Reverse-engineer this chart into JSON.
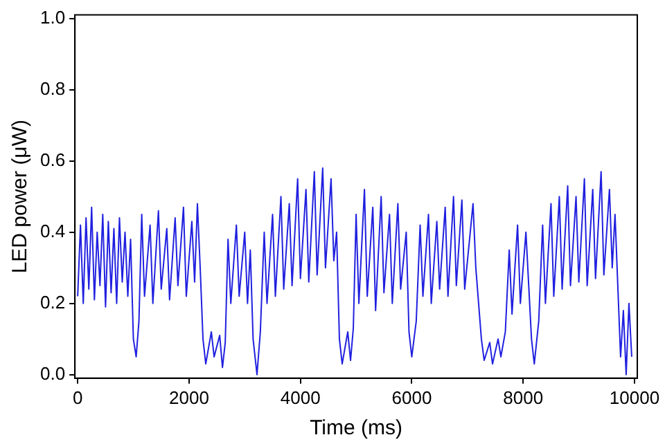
{
  "chart_data": {
    "type": "line",
    "xlabel": "Time (ms)",
    "ylabel": "LED power (μW)",
    "x": [
      0,
      50,
      100,
      150,
      200,
      250,
      300,
      350,
      400,
      450,
      500,
      550,
      600,
      650,
      700,
      750,
      800,
      850,
      900,
      950,
      1000,
      1050,
      1100,
      1150,
      1200,
      1300,
      1350,
      1450,
      1500,
      1600,
      1650,
      1750,
      1800,
      1900,
      1950,
      2050,
      2100,
      2150,
      2200,
      2250,
      2300,
      2400,
      2450,
      2550,
      2600,
      2650,
      2700,
      2750,
      2850,
      2900,
      3000,
      3050,
      3100,
      3150,
      3220,
      3280,
      3350,
      3400,
      3500,
      3550,
      3650,
      3700,
      3800,
      3850,
      3950,
      4000,
      4100,
      4150,
      4250,
      4300,
      4400,
      4450,
      4550,
      4600,
      4650,
      4700,
      4750,
      4850,
      4900,
      4950,
      5000,
      5050,
      5150,
      5200,
      5300,
      5350,
      5450,
      5500,
      5600,
      5650,
      5750,
      5800,
      5900,
      5950,
      6000,
      6080,
      6150,
      6200,
      6300,
      6350,
      6450,
      6500,
      6600,
      6650,
      6750,
      6800,
      6900,
      6950,
      7100,
      7150,
      7250,
      7300,
      7400,
      7450,
      7550,
      7600,
      7680,
      7750,
      7800,
      7900,
      7950,
      8050,
      8100,
      8150,
      8200,
      8280,
      8350,
      8400,
      8500,
      8550,
      8650,
      8700,
      8800,
      8850,
      8950,
      9000,
      9100,
      9150,
      9250,
      9300,
      9400,
      9450,
      9550,
      9600,
      9650,
      9750,
      9800,
      9850,
      9900,
      9950
    ],
    "series": [
      {
        "color": "#2020e0",
        "values": [
          0.22,
          0.42,
          0.2,
          0.44,
          0.24,
          0.47,
          0.21,
          0.4,
          0.25,
          0.45,
          0.19,
          0.43,
          0.23,
          0.41,
          0.2,
          0.44,
          0.26,
          0.4,
          0.22,
          0.38,
          0.1,
          0.05,
          0.15,
          0.45,
          0.22,
          0.42,
          0.2,
          0.46,
          0.24,
          0.41,
          0.21,
          0.44,
          0.25,
          0.47,
          0.22,
          0.43,
          0.26,
          0.48,
          0.3,
          0.1,
          0.03,
          0.12,
          0.05,
          0.11,
          0.02,
          0.09,
          0.38,
          0.2,
          0.42,
          0.22,
          0.4,
          0.2,
          0.35,
          0.1,
          0.0,
          0.12,
          0.4,
          0.2,
          0.45,
          0.22,
          0.5,
          0.24,
          0.48,
          0.25,
          0.55,
          0.27,
          0.52,
          0.26,
          0.57,
          0.28,
          0.58,
          0.3,
          0.55,
          0.32,
          0.4,
          0.1,
          0.03,
          0.12,
          0.04,
          0.13,
          0.45,
          0.2,
          0.52,
          0.22,
          0.47,
          0.18,
          0.5,
          0.23,
          0.45,
          0.2,
          0.48,
          0.24,
          0.4,
          0.12,
          0.05,
          0.15,
          0.42,
          0.22,
          0.45,
          0.2,
          0.43,
          0.24,
          0.47,
          0.22,
          0.5,
          0.25,
          0.49,
          0.24,
          0.48,
          0.3,
          0.1,
          0.04,
          0.09,
          0.03,
          0.1,
          0.05,
          0.12,
          0.35,
          0.17,
          0.42,
          0.2,
          0.4,
          0.25,
          0.1,
          0.03,
          0.15,
          0.42,
          0.2,
          0.48,
          0.22,
          0.5,
          0.24,
          0.53,
          0.25,
          0.5,
          0.26,
          0.55,
          0.25,
          0.52,
          0.27,
          0.57,
          0.28,
          0.52,
          0.3,
          0.45,
          0.05,
          0.18,
          0.0,
          0.2,
          0.05
        ]
      }
    ],
    "xlim": [
      -50,
      10050
    ],
    "xticks": [
      0,
      2000,
      4000,
      6000,
      8000,
      10000
    ],
    "ylim": [
      -0.01,
      1.01
    ],
    "yticks": [
      {
        "value": 0,
        "label": "0.0"
      },
      {
        "value": 0.2,
        "label": "0.2"
      },
      {
        "value": 0.4,
        "label": "0.4"
      },
      {
        "value": 0.6,
        "label": "0.6"
      },
      {
        "value": 0.8,
        "label": "0.8"
      },
      {
        "value": 1,
        "label": "1.0"
      }
    ],
    "grid": false,
    "legend": false,
    "marker": "none",
    "line_style": "solid"
  }
}
